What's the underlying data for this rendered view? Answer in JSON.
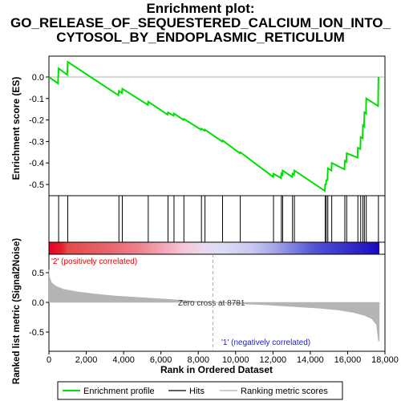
{
  "chart_data": {
    "type": "line",
    "title_lines": [
      "Enrichment plot:",
      "GO_RELEASE_OF_SEQUESTERED_CALCIUM_ION_INTO_",
      "CYTOSOL_BY_ENDOPLASMIC_RETICULUM"
    ],
    "ylabel_top": "Enrichment score (ES)",
    "ylabel_bottom": "Ranked list metric (Signal2Noise)",
    "xlabel": "Rank in Ordered Dataset",
    "xlim": [
      0,
      18000
    ],
    "es_ylim": [
      -0.55,
      0.1
    ],
    "metric_ylim": [
      -0.7,
      0.7
    ],
    "xticks": [
      0,
      2000,
      4000,
      6000,
      8000,
      10000,
      12000,
      14000,
      16000,
      18000
    ],
    "xtick_labels": [
      "0",
      "2,000",
      "4,000",
      "6,000",
      "8,000",
      "10,000",
      "12,000",
      "14,000",
      "16,000",
      "18,000"
    ],
    "es_yticks": [
      0.0,
      -0.1,
      -0.2,
      -0.3,
      -0.4,
      -0.5
    ],
    "es_ytick_labels": [
      "0.0",
      "-0.1",
      "-0.2",
      "-0.3",
      "-0.4",
      "-0.5"
    ],
    "metric_yticks": [
      0.5,
      0.0,
      -0.5
    ],
    "metric_ytick_labels": [
      "0.5",
      "0.0",
      "-0.5"
    ],
    "hits": [
      520,
      1010,
      3750,
      3930,
      5320,
      6380,
      6700,
      7230,
      8170,
      8360,
      9300,
      10250,
      12030,
      12450,
      12520,
      13050,
      13150,
      14800,
      14860,
      14940,
      15150,
      15850,
      15950,
      16550,
      16700,
      16820,
      16900,
      17000,
      17650
    ],
    "es_profile": [
      [
        0,
        0.0
      ],
      [
        480,
        -0.03
      ],
      [
        520,
        0.04
      ],
      [
        980,
        0.01
      ],
      [
        1010,
        0.07
      ],
      [
        3720,
        -0.085
      ],
      [
        3750,
        -0.065
      ],
      [
        3900,
        -0.075
      ],
      [
        3930,
        -0.055
      ],
      [
        5300,
        -0.13
      ],
      [
        5320,
        -0.115
      ],
      [
        6360,
        -0.175
      ],
      [
        6380,
        -0.165
      ],
      [
        6680,
        -0.18
      ],
      [
        6700,
        -0.17
      ],
      [
        7210,
        -0.2
      ],
      [
        7230,
        -0.195
      ],
      [
        8150,
        -0.245
      ],
      [
        8170,
        -0.24
      ],
      [
        8340,
        -0.25
      ],
      [
        8360,
        -0.245
      ],
      [
        9280,
        -0.3
      ],
      [
        9300,
        -0.295
      ],
      [
        10230,
        -0.355
      ],
      [
        10250,
        -0.35
      ],
      [
        12010,
        -0.465
      ],
      [
        12030,
        -0.45
      ],
      [
        12430,
        -0.47
      ],
      [
        12450,
        -0.45
      ],
      [
        12500,
        -0.455
      ],
      [
        12520,
        -0.435
      ],
      [
        13030,
        -0.465
      ],
      [
        13050,
        -0.45
      ],
      [
        13130,
        -0.455
      ],
      [
        13150,
        -0.435
      ],
      [
        14780,
        -0.53
      ],
      [
        14800,
        -0.5
      ],
      [
        14840,
        -0.5
      ],
      [
        14860,
        -0.48
      ],
      [
        14920,
        -0.48
      ],
      [
        14940,
        -0.425
      ],
      [
        15130,
        -0.435
      ],
      [
        15150,
        -0.4
      ],
      [
        15830,
        -0.43
      ],
      [
        15850,
        -0.39
      ],
      [
        15930,
        -0.395
      ],
      [
        15950,
        -0.355
      ],
      [
        16530,
        -0.375
      ],
      [
        16550,
        -0.33
      ],
      [
        16680,
        -0.335
      ],
      [
        16700,
        -0.28
      ],
      [
        16800,
        -0.285
      ],
      [
        16820,
        -0.225
      ],
      [
        16880,
        -0.23
      ],
      [
        16900,
        -0.165
      ],
      [
        16980,
        -0.17
      ],
      [
        17000,
        -0.1
      ],
      [
        17630,
        -0.135
      ],
      [
        17650,
        0.0
      ]
    ],
    "metric_profile": [
      [
        0,
        0.55
      ],
      [
        40,
        0.42
      ],
      [
        150,
        0.33
      ],
      [
        400,
        0.27
      ],
      [
        800,
        0.22
      ],
      [
        1500,
        0.18
      ],
      [
        2500,
        0.14
      ],
      [
        3500,
        0.11
      ],
      [
        5000,
        0.08
      ],
      [
        6500,
        0.05
      ],
      [
        7500,
        0.025
      ],
      [
        8781,
        0.0
      ],
      [
        10000,
        -0.02
      ],
      [
        11500,
        -0.04
      ],
      [
        13000,
        -0.07
      ],
      [
        14500,
        -0.1
      ],
      [
        15500,
        -0.13
      ],
      [
        16300,
        -0.17
      ],
      [
        16900,
        -0.22
      ],
      [
        17300,
        -0.28
      ],
      [
        17550,
        -0.38
      ],
      [
        17650,
        -0.65
      ],
      [
        17700,
        -0.65
      ]
    ],
    "colorbar_stops": [
      {
        "rank": 0,
        "color": "#e8002a"
      },
      {
        "rank": 700,
        "color": "#e4212f"
      },
      {
        "rank": 1000,
        "color": "#e44a4a"
      },
      {
        "rank": 3200,
        "color": "#e8666e"
      },
      {
        "rank": 4700,
        "color": "#ee7f88"
      },
      {
        "rank": 6200,
        "color": "#f4a8ba"
      },
      {
        "rank": 7200,
        "color": "#f5c6d8"
      },
      {
        "rank": 8300,
        "color": "#ead9ef"
      },
      {
        "rank": 9300,
        "color": "#dcdcf5"
      },
      {
        "rank": 10800,
        "color": "#c8c9f0"
      },
      {
        "rank": 12000,
        "color": "#a8a9ea"
      },
      {
        "rank": 13000,
        "color": "#8083e0"
      },
      {
        "rank": 14200,
        "color": "#5254d4"
      },
      {
        "rank": 16800,
        "color": "#2a1ec8"
      },
      {
        "rank": 17700,
        "color": "#1808c0"
      }
    ],
    "pos_label": "'2' (positively correlated)",
    "neg_label": "'1' (negatively correlated)",
    "zero_cross_label": "Zero cross at 8781",
    "zero_cross_rank": 8781,
    "legend": [
      {
        "label": "Enrichment profile",
        "color": "#00e000"
      },
      {
        "label": "Hits",
        "color": "#000000"
      },
      {
        "label": "Ranking metric scores",
        "color": "#bbbbbb"
      }
    ],
    "colors": {
      "es_line": "#00e000",
      "metric_fill": "#b4b4b4",
      "pos_label": "#e00000",
      "neg_label": "#2020d0"
    }
  }
}
